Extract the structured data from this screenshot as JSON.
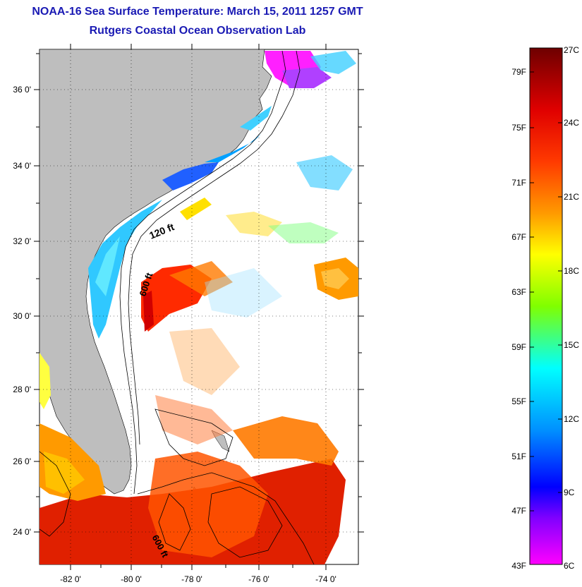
{
  "header": {
    "title": "NOAA-16 Sea Surface Temperature:  March 15, 2011 1257 GMT",
    "subtitle": "Rutgers Coastal Ocean Observation Lab"
  },
  "map": {
    "lat_labels": [
      "36 0'",
      "34 0'",
      "32 0'",
      "30 0'",
      "28 0'",
      "26 0'",
      "24 0'"
    ],
    "lon_labels": [
      "-82 0'",
      "-80 0'",
      "-78 0'",
      "-76 0'",
      "-74 0'"
    ],
    "contour_labels": [
      "120 ft",
      "600 ft",
      "600 ft"
    ],
    "land_color": "#bebebe",
    "contour_color": "#000000"
  },
  "colorbar": {
    "fahrenheit_labels": [
      "79F",
      "75F",
      "71F",
      "67F",
      "63F",
      "59F",
      "55F",
      "51F",
      "47F",
      "43F"
    ],
    "celsius_labels": [
      "27C",
      "24C",
      "21C",
      "18C",
      "15C",
      "12C",
      "9C",
      "6C"
    ],
    "colors": [
      "#7a0000",
      "#ff0000",
      "#ff8000",
      "#ffff00",
      "#80ff00",
      "#00ffff",
      "#0080ff",
      "#0000ff",
      "#8000ff",
      "#ff00ff"
    ]
  }
}
